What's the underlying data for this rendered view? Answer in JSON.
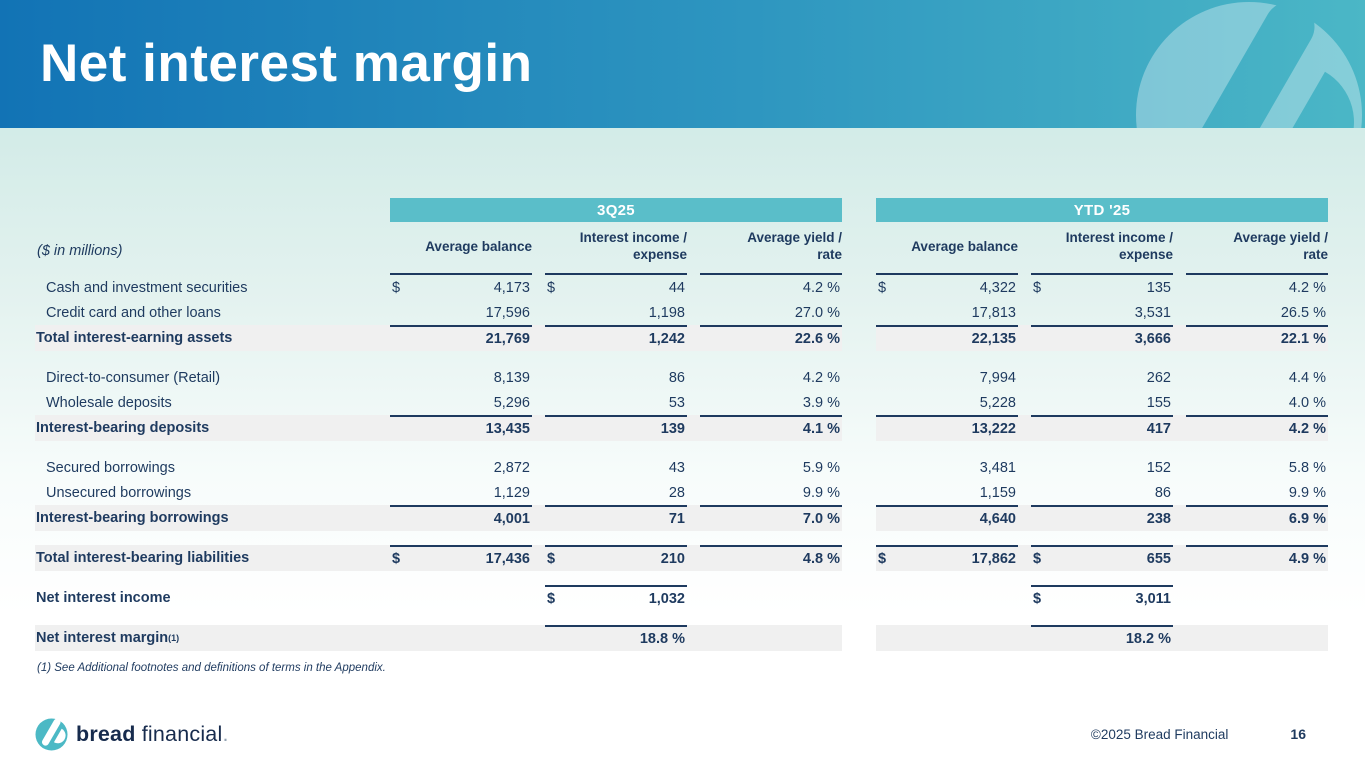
{
  "slide": {
    "title": "Net interest margin",
    "units_note": "($ in millions)",
    "footnote": "(1) See Additional footnotes and definitions of terms in the Appendix.",
    "footer": {
      "logo_bold": "bread",
      "logo_regular": "financial",
      "logo_period": ".",
      "copyright": "©2025 Bread Financial",
      "page": "16"
    },
    "colors": {
      "header_gradient_left": "#1273b5",
      "header_gradient_right": "#4bb7c6",
      "section_band": "#5abec9",
      "total_row_band": "#f0f0f0",
      "text_navy": "#1e3a5f",
      "logo_teal": "#4cb9c5"
    }
  },
  "table": {
    "sections": [
      {
        "label": "3Q25"
      },
      {
        "label": "YTD '25"
      }
    ],
    "column_headers": [
      "Average balance",
      "Interest income /\nexpense",
      "Average yield /\nrate"
    ],
    "rows": [
      {
        "label": "Cash and investment securities",
        "bold": false,
        "gray": false,
        "lines": [
          false,
          false,
          false,
          false,
          false,
          false
        ],
        "cells": [
          [
            "$",
            "4,173"
          ],
          [
            "$",
            "44"
          ],
          [
            "",
            "4.2 %"
          ],
          [
            "$",
            "4,322"
          ],
          [
            "$",
            "135"
          ],
          [
            "",
            "4.2 %"
          ]
        ]
      },
      {
        "label": "Credit card and other loans",
        "bold": false,
        "gray": false,
        "lines": [
          false,
          false,
          false,
          false,
          false,
          false
        ],
        "cells": [
          [
            "",
            "17,596"
          ],
          [
            "",
            "1,198"
          ],
          [
            "",
            "27.0 %"
          ],
          [
            "",
            "17,813"
          ],
          [
            "",
            "3,531"
          ],
          [
            "",
            "26.5 %"
          ]
        ]
      },
      {
        "label": "Total interest-earning assets",
        "bold": true,
        "gray": true,
        "lines": [
          true,
          true,
          true,
          true,
          true,
          true
        ],
        "cells": [
          [
            "",
            "21,769"
          ],
          [
            "",
            "1,242"
          ],
          [
            "",
            "22.6 %"
          ],
          [
            "",
            "22,135"
          ],
          [
            "",
            "3,666"
          ],
          [
            "",
            "22.1 %"
          ]
        ]
      },
      {
        "spacer": true
      },
      {
        "label": "Direct-to-consumer (Retail)",
        "bold": false,
        "gray": false,
        "lines": [
          false,
          false,
          false,
          false,
          false,
          false
        ],
        "cells": [
          [
            "",
            "8,139"
          ],
          [
            "",
            "86"
          ],
          [
            "",
            "4.2 %"
          ],
          [
            "",
            "7,994"
          ],
          [
            "",
            "262"
          ],
          [
            "",
            "4.4 %"
          ]
        ]
      },
      {
        "label": "Wholesale deposits",
        "bold": false,
        "gray": false,
        "lines": [
          false,
          false,
          false,
          false,
          false,
          false
        ],
        "cells": [
          [
            "",
            "5,296"
          ],
          [
            "",
            "53"
          ],
          [
            "",
            "3.9 %"
          ],
          [
            "",
            "5,228"
          ],
          [
            "",
            "155"
          ],
          [
            "",
            "4.0 %"
          ]
        ]
      },
      {
        "label": "Interest-bearing deposits",
        "bold": true,
        "gray": true,
        "lines": [
          true,
          true,
          true,
          true,
          true,
          true
        ],
        "cells": [
          [
            "",
            "13,435"
          ],
          [
            "",
            "139"
          ],
          [
            "",
            "4.1 %"
          ],
          [
            "",
            "13,222"
          ],
          [
            "",
            "417"
          ],
          [
            "",
            "4.2 %"
          ]
        ]
      },
      {
        "spacer": true
      },
      {
        "label": "Secured borrowings",
        "bold": false,
        "gray": false,
        "lines": [
          false,
          false,
          false,
          false,
          false,
          false
        ],
        "cells": [
          [
            "",
            "2,872"
          ],
          [
            "",
            "43"
          ],
          [
            "",
            "5.9 %"
          ],
          [
            "",
            "3,481"
          ],
          [
            "",
            "152"
          ],
          [
            "",
            "5.8 %"
          ]
        ]
      },
      {
        "label": "Unsecured borrowings",
        "bold": false,
        "gray": false,
        "lines": [
          false,
          false,
          false,
          false,
          false,
          false
        ],
        "cells": [
          [
            "",
            "1,129"
          ],
          [
            "",
            "28"
          ],
          [
            "",
            "9.9 %"
          ],
          [
            "",
            "1,159"
          ],
          [
            "",
            "86"
          ],
          [
            "",
            "9.9 %"
          ]
        ]
      },
      {
        "label": "Interest-bearing borrowings",
        "bold": true,
        "gray": true,
        "lines": [
          true,
          true,
          true,
          true,
          true,
          true
        ],
        "cells": [
          [
            "",
            "4,001"
          ],
          [
            "",
            "71"
          ],
          [
            "",
            "7.0 %"
          ],
          [
            "",
            "4,640"
          ],
          [
            "",
            "238"
          ],
          [
            "",
            "6.9 %"
          ]
        ]
      },
      {
        "spacer": true
      },
      {
        "label": "Total interest-bearing liabilities",
        "bold": true,
        "gray": true,
        "lines": [
          true,
          true,
          true,
          true,
          true,
          true
        ],
        "cells": [
          [
            "$",
            "17,436"
          ],
          [
            "$",
            "210"
          ],
          [
            "",
            "4.8 %"
          ],
          [
            "$",
            "17,862"
          ],
          [
            "$",
            "655"
          ],
          [
            "",
            "4.9 %"
          ]
        ]
      },
      {
        "spacer": true
      },
      {
        "label": "Net interest income",
        "bold": true,
        "gray": false,
        "lines": [
          false,
          true,
          false,
          false,
          true,
          false
        ],
        "cells": [
          [
            "",
            ""
          ],
          [
            "$",
            "1,032"
          ],
          [
            "",
            ""
          ],
          [
            "",
            ""
          ],
          [
            "$",
            "3,011"
          ],
          [
            "",
            ""
          ]
        ]
      },
      {
        "spacer": true
      },
      {
        "label": "Net interest margin",
        "sup": "(1)",
        "bold": true,
        "gray": true,
        "lines": [
          false,
          true,
          false,
          false,
          true,
          false
        ],
        "cells": [
          [
            "",
            ""
          ],
          [
            "",
            "18.8 %"
          ],
          [
            "",
            ""
          ],
          [
            "",
            ""
          ],
          [
            "",
            "18.2 %"
          ],
          [
            "",
            ""
          ]
        ]
      }
    ]
  }
}
